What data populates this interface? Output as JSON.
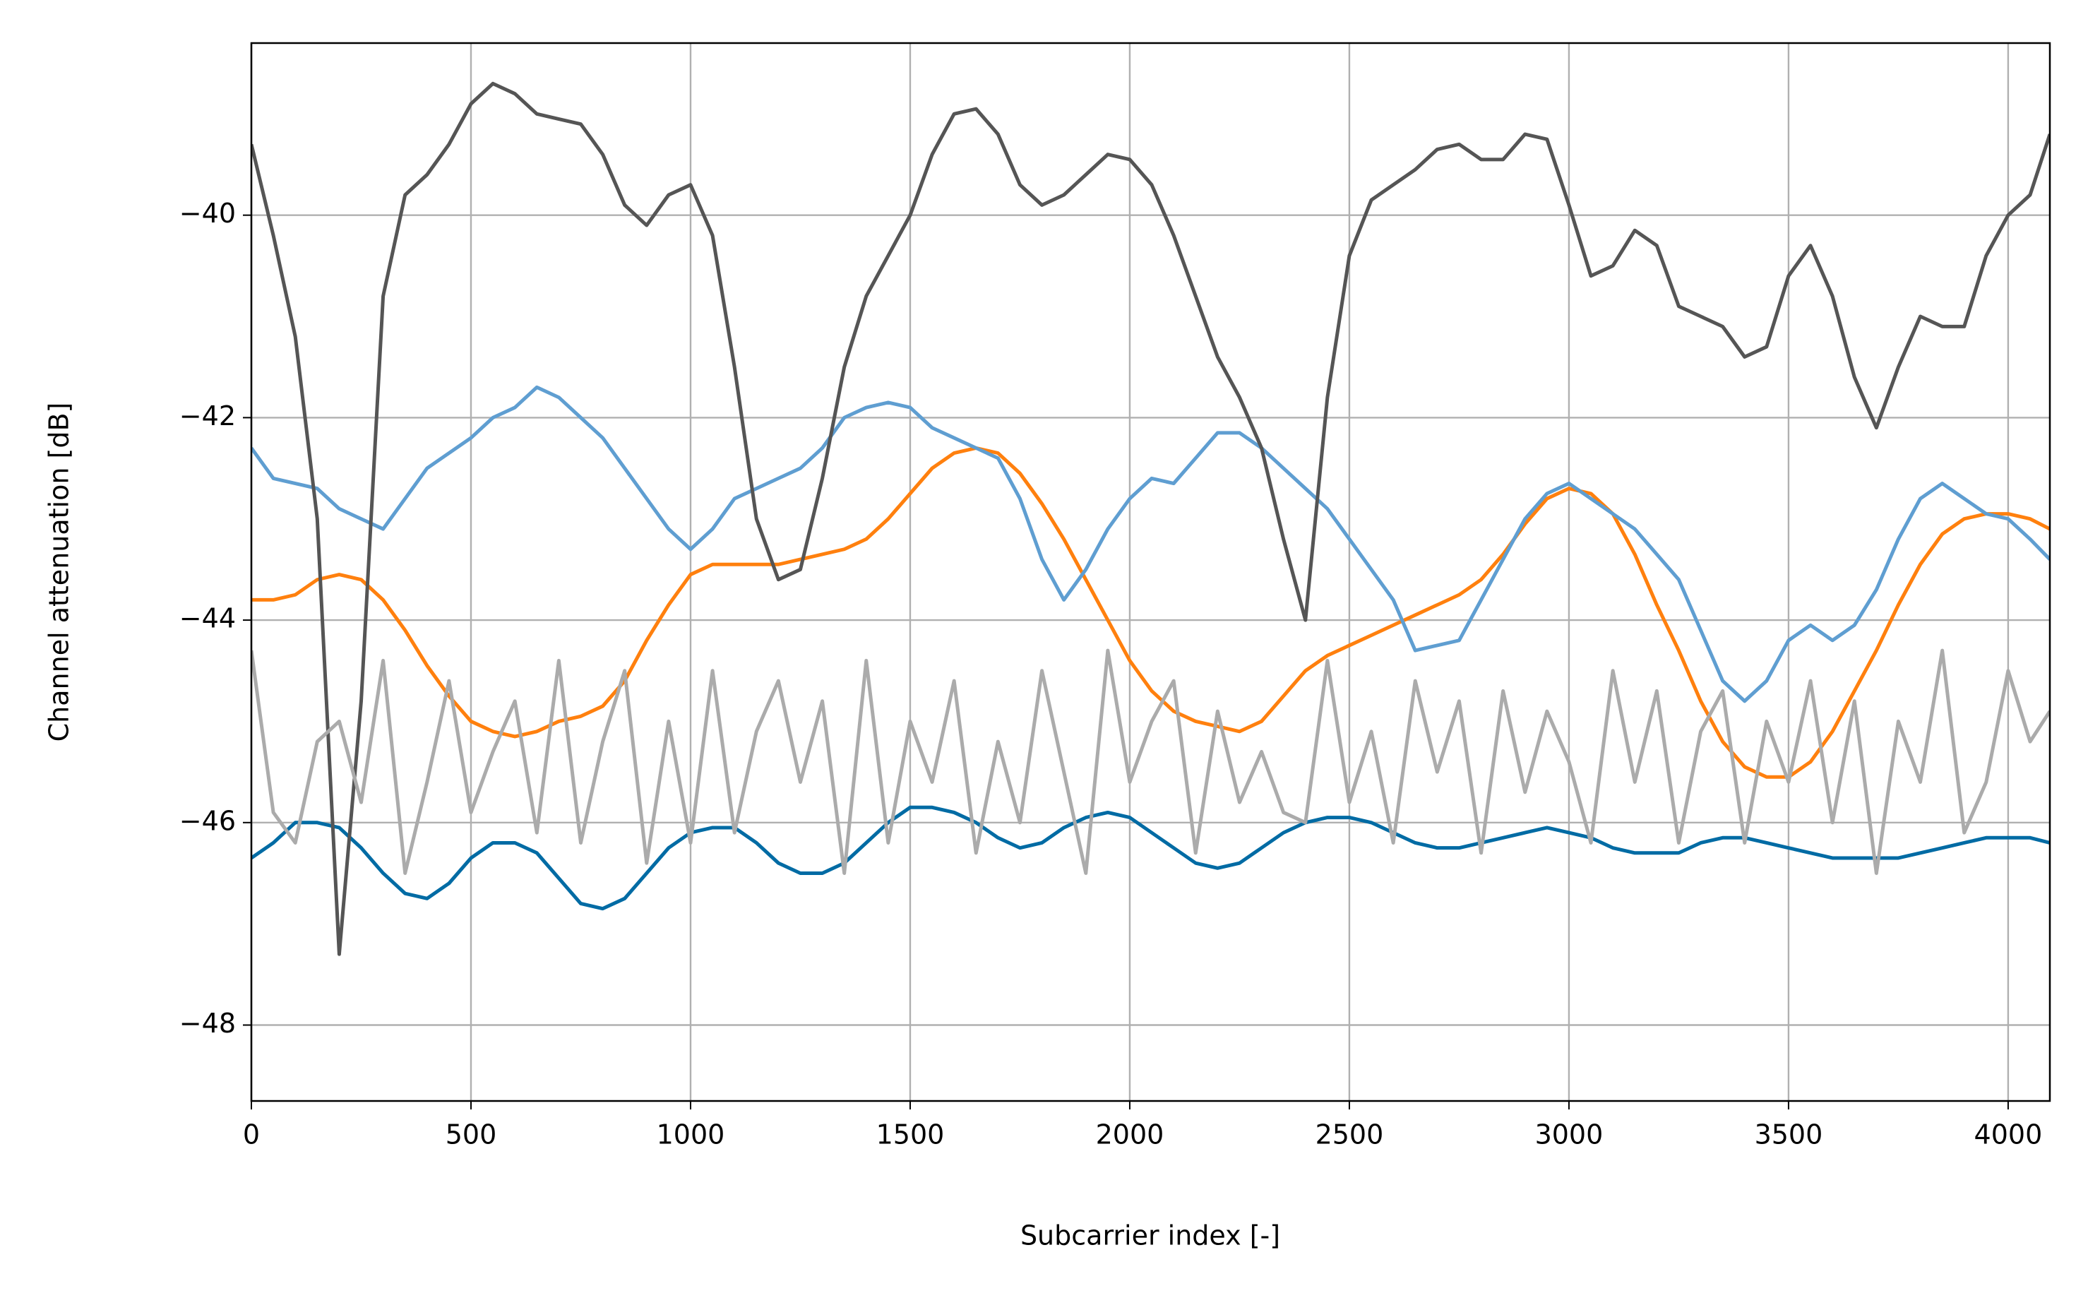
{
  "chart_data": {
    "type": "line",
    "xlabel": "Subcarrier index [-]",
    "ylabel": "Channel attenuation [dB]",
    "xlim": [
      0,
      4095
    ],
    "ylim": [
      -48.75,
      -38.3
    ],
    "xticks": [
      0,
      500,
      1000,
      1500,
      2000,
      2500,
      3000,
      3500,
      4000
    ],
    "yticks": [
      {
        "value": -48,
        "label": "−48"
      },
      {
        "value": -46,
        "label": "−46"
      },
      {
        "value": -44,
        "label": "−44"
      },
      {
        "value": -42,
        "label": "−42"
      },
      {
        "value": -40,
        "label": "−40"
      }
    ],
    "grid": true,
    "x": [
      0,
      50,
      100,
      150,
      200,
      250,
      300,
      350,
      400,
      450,
      500,
      550,
      600,
      650,
      700,
      750,
      800,
      850,
      900,
      950,
      1000,
      1050,
      1100,
      1150,
      1200,
      1250,
      1300,
      1350,
      1400,
      1450,
      1500,
      1550,
      1600,
      1650,
      1700,
      1750,
      1800,
      1850,
      1900,
      1950,
      2000,
      2050,
      2100,
      2150,
      2200,
      2250,
      2300,
      2350,
      2400,
      2450,
      2500,
      2550,
      2600,
      2650,
      2700,
      2750,
      2800,
      2850,
      2900,
      2950,
      3000,
      3050,
      3100,
      3150,
      3200,
      3250,
      3300,
      3350,
      3400,
      3450,
      3500,
      3550,
      3600,
      3650,
      3700,
      3750,
      3800,
      3850,
      3900,
      3950,
      4000,
      4050,
      4095
    ],
    "series": [
      {
        "color": "#006ba4",
        "values": [
          -46.35,
          -46.2,
          -46.0,
          -46.0,
          -46.05,
          -46.25,
          -46.5,
          -46.7,
          -46.75,
          -46.6,
          -46.35,
          -46.2,
          -46.2,
          -46.3,
          -46.55,
          -46.8,
          -46.85,
          -46.75,
          -46.5,
          -46.25,
          -46.1,
          -46.05,
          -46.05,
          -46.2,
          -46.4,
          -46.5,
          -46.5,
          -46.4,
          -46.2,
          -46.0,
          -45.85,
          -45.85,
          -45.9,
          -46.0,
          -46.15,
          -46.25,
          -46.2,
          -46.05,
          -45.95,
          -45.9,
          -45.95,
          -46.1,
          -46.25,
          -46.4,
          -46.45,
          -46.4,
          -46.25,
          -46.1,
          -46.0,
          -45.95,
          -45.95,
          -46.0,
          -46.1,
          -46.2,
          -46.25,
          -46.25,
          -46.2,
          -46.15,
          -46.1,
          -46.05,
          -46.1,
          -46.15,
          -46.25,
          -46.3,
          -46.3,
          -46.3,
          -46.2,
          -46.15,
          -46.15,
          -46.2,
          -46.25,
          -46.3,
          -46.35,
          -46.35,
          -46.35,
          -46.35,
          -46.3,
          -46.25,
          -46.2,
          -46.15,
          -46.15,
          -46.15,
          -46.2
        ]
      },
      {
        "color": "#ff800e",
        "values": [
          -43.8,
          -43.8,
          -43.75,
          -43.6,
          -43.55,
          -43.6,
          -43.8,
          -44.1,
          -44.45,
          -44.75,
          -45.0,
          -45.1,
          -45.15,
          -45.1,
          -45.0,
          -44.95,
          -44.85,
          -44.6,
          -44.2,
          -43.85,
          -43.55,
          -43.45,
          -43.45,
          -43.45,
          -43.45,
          -43.4,
          -43.35,
          -43.3,
          -43.2,
          -43.0,
          -42.75,
          -42.5,
          -42.35,
          -42.3,
          -42.35,
          -42.55,
          -42.85,
          -43.2,
          -43.6,
          -44.0,
          -44.4,
          -44.7,
          -44.9,
          -45.0,
          -45.05,
          -45.1,
          -45.0,
          -44.75,
          -44.5,
          -44.35,
          -44.25,
          -44.15,
          -44.05,
          -43.95,
          -43.85,
          -43.75,
          -43.6,
          -43.35,
          -43.05,
          -42.8,
          -42.7,
          -42.75,
          -42.95,
          -43.35,
          -43.85,
          -44.3,
          -44.8,
          -45.2,
          -45.45,
          -45.55,
          -45.55,
          -45.4,
          -45.1,
          -44.7,
          -44.3,
          -43.85,
          -43.45,
          -43.15,
          -43.0,
          -42.95,
          -42.95,
          -43.0,
          -43.1
        ]
      },
      {
        "color": "#5f9ed1",
        "values": [
          -42.3,
          -42.6,
          -42.65,
          -42.7,
          -42.9,
          -43.0,
          -43.1,
          -42.8,
          -42.5,
          -42.35,
          -42.2,
          -42.0,
          -41.9,
          -41.7,
          -41.8,
          -42.0,
          -42.2,
          -42.5,
          -42.8,
          -43.1,
          -43.3,
          -43.1,
          -42.8,
          -42.7,
          -42.6,
          -42.5,
          -42.3,
          -42.0,
          -41.9,
          -41.85,
          -41.9,
          -42.1,
          -42.2,
          -42.3,
          -42.4,
          -42.8,
          -43.4,
          -43.8,
          -43.5,
          -43.1,
          -42.8,
          -42.6,
          -42.65,
          -42.4,
          -42.15,
          -42.15,
          -42.3,
          -42.5,
          -42.7,
          -42.9,
          -43.2,
          -43.5,
          -43.8,
          -44.3,
          -44.25,
          -44.2,
          -43.8,
          -43.4,
          -43.0,
          -42.75,
          -42.65,
          -42.8,
          -42.95,
          -43.1,
          -43.35,
          -43.6,
          -44.1,
          -44.6,
          -44.8,
          -44.6,
          -44.2,
          -44.05,
          -44.2,
          -44.05,
          -43.7,
          -43.2,
          -42.8,
          -42.65,
          -42.8,
          -42.95,
          -43.0,
          -43.2,
          -43.4
        ]
      },
      {
        "color": "#555555",
        "values": [
          -39.3,
          -40.2,
          -41.2,
          -43.0,
          -47.3,
          -44.8,
          -40.8,
          -39.8,
          -39.6,
          -39.3,
          -38.9,
          -38.7,
          -38.8,
          -39.0,
          -39.05,
          -39.1,
          -39.4,
          -39.9,
          -40.1,
          -39.8,
          -39.7,
          -40.2,
          -41.5,
          -43.0,
          -43.6,
          -43.5,
          -42.6,
          -41.5,
          -40.8,
          -40.4,
          -40.0,
          -39.4,
          -39.0,
          -38.95,
          -39.2,
          -39.7,
          -39.9,
          -39.8,
          -39.6,
          -39.4,
          -39.45,
          -39.7,
          -40.2,
          -40.8,
          -41.4,
          -41.8,
          -42.3,
          -43.2,
          -44.0,
          -41.8,
          -40.4,
          -39.85,
          -39.7,
          -39.55,
          -39.35,
          -39.3,
          -39.45,
          -39.45,
          -39.2,
          -39.25,
          -39.9,
          -40.6,
          -40.5,
          -40.15,
          -40.3,
          -40.9,
          -41.0,
          -41.1,
          -41.4,
          -41.3,
          -40.6,
          -40.3,
          -40.8,
          -41.6,
          -42.1,
          -41.5,
          -41.0,
          -41.1,
          -41.1,
          -40.4,
          -40.0,
          -39.8,
          -39.2
        ]
      },
      {
        "color": "#ababab",
        "values": [
          -44.3,
          -45.9,
          -46.2,
          -45.2,
          -45.0,
          -45.8,
          -44.4,
          -46.5,
          -45.6,
          -44.6,
          -45.9,
          -45.3,
          -44.8,
          -46.1,
          -44.4,
          -46.2,
          -45.2,
          -44.5,
          -46.4,
          -45.0,
          -46.2,
          -44.5,
          -46.1,
          -45.1,
          -44.6,
          -45.6,
          -44.8,
          -46.5,
          -44.4,
          -46.2,
          -45.0,
          -45.6,
          -44.6,
          -46.3,
          -45.2,
          -46.0,
          -44.5,
          -45.5,
          -46.5,
          -44.3,
          -45.6,
          -45.0,
          -44.6,
          -46.3,
          -44.9,
          -45.8,
          -45.3,
          -45.9,
          -46.0,
          -44.4,
          -45.8,
          -45.1,
          -46.2,
          -44.6,
          -45.5,
          -44.8,
          -46.3,
          -44.7,
          -45.7,
          -44.9,
          -45.4,
          -46.2,
          -44.5,
          -45.6,
          -44.7,
          -46.2,
          -45.1,
          -44.7,
          -46.2,
          -45.0,
          -45.6,
          -44.6,
          -46.0,
          -44.8,
          -46.5,
          -45.0,
          -45.6,
          -44.3,
          -46.1,
          -45.6,
          -44.5,
          -45.2,
          -44.9
        ]
      }
    ]
  }
}
